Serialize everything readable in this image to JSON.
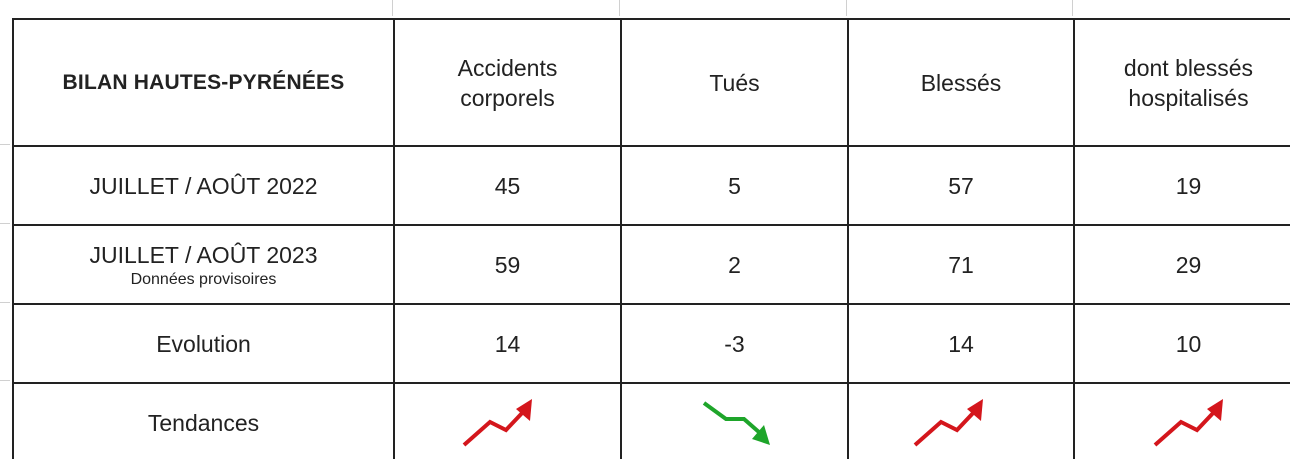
{
  "table": {
    "header": [
      "BILAN HAUTES-PYRÉNÉES",
      "Accidents corporels",
      "Tués",
      "Blessés",
      "dont blessés hospitalisés"
    ],
    "rows": [
      {
        "label": "JUILLET / AOÛT 2022",
        "values": [
          45,
          5,
          57,
          19
        ]
      },
      {
        "label": "JUILLET / AOÛT 2023",
        "note": "Données provisoires",
        "values": [
          59,
          2,
          71,
          29
        ]
      },
      {
        "label": "Evolution",
        "values": [
          14,
          -3,
          14,
          10
        ]
      },
      {
        "label": "Tendances"
      }
    ]
  }
}
